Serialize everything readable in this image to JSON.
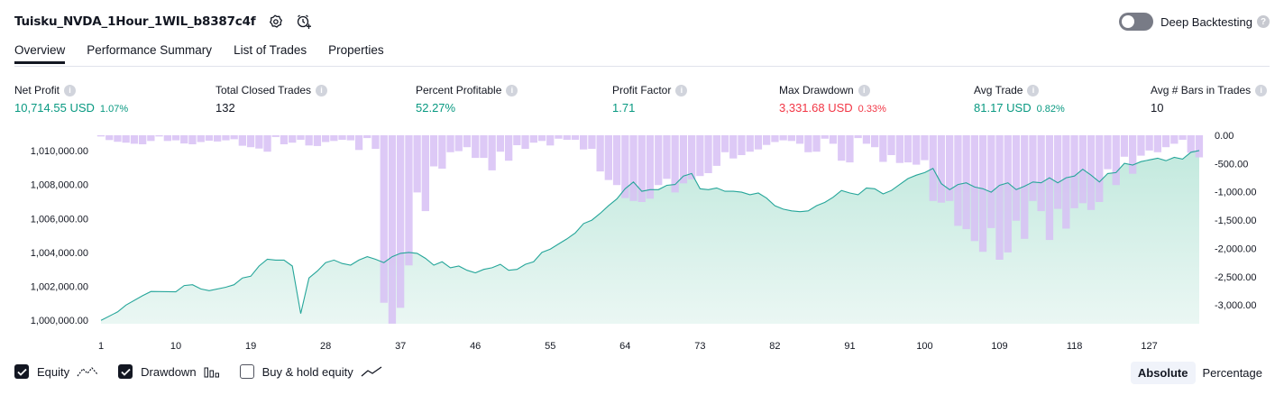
{
  "header": {
    "strategy_name": "Tuisku_NVDA_1Hour_1WIL_b8387c4f",
    "icons": [
      "settings-icon",
      "add-alert-icon"
    ],
    "deep_backtesting_label": "Deep Backtesting",
    "deep_backtesting_enabled": false
  },
  "tabs": [
    {
      "label": "Overview",
      "active": true
    },
    {
      "label": "Performance Summary",
      "active": false
    },
    {
      "label": "List of Trades",
      "active": false
    },
    {
      "label": "Properties",
      "active": false
    }
  ],
  "metrics": {
    "net_profit": {
      "label": "Net Profit",
      "value": "10,714.55 USD",
      "pct": "1.07%"
    },
    "total_closed_trades": {
      "label": "Total Closed Trades",
      "value": "132"
    },
    "percent_profitable": {
      "label": "Percent Profitable",
      "value": "52.27%"
    },
    "profit_factor": {
      "label": "Profit Factor",
      "value": "1.71"
    },
    "max_drawdown": {
      "label": "Max Drawdown",
      "value": "3,331.68 USD",
      "pct": "0.33%"
    },
    "avg_trade": {
      "label": "Avg Trade",
      "value": "81.17 USD",
      "pct": "0.82%"
    },
    "avg_bars": {
      "label": "Avg # Bars in Trades",
      "value": "10"
    }
  },
  "colors": {
    "green": "#089981",
    "red": "#f23645",
    "drawdown_bar": "#d7bff5",
    "equity_line": "#26a69a",
    "equity_fill": "#c8ece3"
  },
  "legend": {
    "equity": {
      "label": "Equity",
      "checked": true
    },
    "drawdown": {
      "label": "Drawdown",
      "checked": true
    },
    "buy_hold": {
      "label": "Buy & hold equity",
      "checked": false
    }
  },
  "view_modes": {
    "absolute": "Absolute",
    "percentage": "Percentage",
    "selected": "Absolute"
  },
  "chart_data": {
    "type": "area",
    "x_range": [
      1,
      133
    ],
    "x_ticks": [
      "1",
      "10",
      "19",
      "28",
      "37",
      "46",
      "55",
      "64",
      "73",
      "82",
      "91",
      "100",
      "109",
      "118",
      "127"
    ],
    "left_axis_ticks": [
      "1,000,000.00",
      "1,002,000.00",
      "1,004,000.00",
      "1,006,000.00",
      "1,008,000.00",
      "1,010,000.00"
    ],
    "left_axis_range": [
      999800,
      1010900
    ],
    "right_axis_ticks": [
      "0.00",
      "-500.00",
      "-1,000.00",
      "-1,500.00",
      "-2,000.00",
      "-2,500.00",
      "-3,000.00"
    ],
    "right_axis_range": [
      -3331.68,
      0
    ],
    "series": [
      {
        "name": "Equity",
        "type": "area",
        "points": [
          [
            1,
            1000000
          ],
          [
            3,
            1000500
          ],
          [
            4,
            1000900
          ],
          [
            6,
            1001450
          ],
          [
            7,
            1001700
          ],
          [
            10,
            1001680
          ],
          [
            11,
            1002050
          ],
          [
            12,
            1002100
          ],
          [
            13,
            1001850
          ],
          [
            14,
            1001750
          ],
          [
            16,
            1001950
          ],
          [
            17,
            1002100
          ],
          [
            18,
            1002500
          ],
          [
            19,
            1002600
          ],
          [
            20,
            1003200
          ],
          [
            21,
            1003600
          ],
          [
            22,
            1003550
          ],
          [
            23,
            1003550
          ],
          [
            24,
            1003200
          ],
          [
            25,
            1000400
          ],
          [
            26,
            1002500
          ],
          [
            27,
            1002900
          ],
          [
            28,
            1003400
          ],
          [
            29,
            1003550
          ],
          [
            30,
            1003350
          ],
          [
            31,
            1003250
          ],
          [
            32,
            1003550
          ],
          [
            33,
            1003750
          ],
          [
            34,
            1003600
          ],
          [
            35,
            1003400
          ],
          [
            36,
            1003750
          ],
          [
            37,
            1003950
          ],
          [
            38,
            1004000
          ],
          [
            39,
            1003950
          ],
          [
            40,
            1003650
          ],
          [
            41,
            1003250
          ],
          [
            42,
            1003450
          ],
          [
            43,
            1003100
          ],
          [
            44,
            1003200
          ],
          [
            45,
            1002950
          ],
          [
            46,
            1002800
          ],
          [
            47,
            1003000
          ],
          [
            48,
            1003100
          ],
          [
            49,
            1003300
          ],
          [
            50,
            1002950
          ],
          [
            51,
            1003000
          ],
          [
            52,
            1003300
          ],
          [
            53,
            1003450
          ],
          [
            54,
            1004000
          ],
          [
            55,
            1004200
          ],
          [
            56,
            1004500
          ],
          [
            57,
            1004800
          ],
          [
            58,
            1005150
          ],
          [
            59,
            1005700
          ],
          [
            60,
            1005900
          ],
          [
            61,
            1006300
          ],
          [
            62,
            1006750
          ],
          [
            63,
            1007150
          ],
          [
            64,
            1007750
          ],
          [
            65,
            1008150
          ],
          [
            66,
            1007600
          ],
          [
            67,
            1007700
          ],
          [
            68,
            1007700
          ],
          [
            69,
            1007950
          ],
          [
            70,
            1008000
          ],
          [
            71,
            1008500
          ],
          [
            72,
            1008650
          ],
          [
            73,
            1007750
          ],
          [
            74,
            1007700
          ],
          [
            75,
            1007800
          ],
          [
            76,
            1007600
          ],
          [
            77,
            1007600
          ],
          [
            78,
            1007550
          ],
          [
            79,
            1007400
          ],
          [
            80,
            1007500
          ],
          [
            81,
            1007200
          ],
          [
            82,
            1006750
          ],
          [
            83,
            1006550
          ],
          [
            84,
            1006450
          ],
          [
            85,
            1006400
          ],
          [
            86,
            1006450
          ],
          [
            87,
            1006750
          ],
          [
            88,
            1006950
          ],
          [
            89,
            1007250
          ],
          [
            90,
            1007650
          ],
          [
            91,
            1007500
          ],
          [
            92,
            1007400
          ],
          [
            93,
            1007800
          ],
          [
            94,
            1007750
          ],
          [
            95,
            1007450
          ],
          [
            96,
            1007650
          ],
          [
            97,
            1008000
          ],
          [
            98,
            1008350
          ],
          [
            99,
            1008550
          ],
          [
            100,
            1008700
          ],
          [
            101,
            1008950
          ],
          [
            102,
            1008050
          ],
          [
            103,
            1007700
          ],
          [
            104,
            1008000
          ],
          [
            105,
            1008100
          ],
          [
            106,
            1007850
          ],
          [
            107,
            1007750
          ],
          [
            108,
            1007550
          ],
          [
            109,
            1007950
          ],
          [
            110,
            1008100
          ],
          [
            111,
            1007700
          ],
          [
            112,
            1007900
          ],
          [
            113,
            1008150
          ],
          [
            114,
            1008100
          ],
          [
            115,
            1008400
          ],
          [
            116,
            1008100
          ],
          [
            117,
            1008400
          ],
          [
            118,
            1008500
          ],
          [
            119,
            1008900
          ],
          [
            120,
            1008550
          ],
          [
            121,
            1008150
          ],
          [
            122,
            1008650
          ],
          [
            123,
            1008700
          ],
          [
            124,
            1009250
          ],
          [
            125,
            1009150
          ],
          [
            126,
            1009350
          ],
          [
            127,
            1009450
          ],
          [
            128,
            1009550
          ],
          [
            129,
            1009400
          ],
          [
            130,
            1009600
          ],
          [
            131,
            1009500
          ],
          [
            132,
            1009900
          ],
          [
            133,
            1010000
          ]
        ]
      },
      {
        "name": "Drawdown",
        "type": "bar",
        "values": [
          -20,
          -85,
          -115,
          -130,
          -150,
          -160,
          -100,
          -20,
          -100,
          -90,
          -145,
          -160,
          -120,
          -95,
          -110,
          -90,
          -70,
          -185,
          -210,
          -235,
          -290,
          -30,
          -160,
          -130,
          -80,
          -180,
          -190,
          -120,
          -100,
          -80,
          -90,
          -260,
          -50,
          -240,
          -2960,
          -3330,
          -3050,
          -2300,
          -1010,
          -1340,
          -550,
          -590,
          -300,
          -280,
          -210,
          -400,
          -400,
          -620,
          -290,
          -450,
          -175,
          -240,
          -130,
          -100,
          -180,
          -60,
          -80,
          -80,
          -250,
          -240,
          -640,
          -790,
          -880,
          -1110,
          -1160,
          -1180,
          -1120,
          -880,
          -770,
          -1010,
          -850,
          -780,
          -720,
          -670,
          -540,
          -300,
          -410,
          -350,
          -290,
          -250,
          -170,
          -120,
          -90,
          -100,
          -150,
          -300,
          -290,
          -60,
          -150,
          -450,
          -480,
          -50,
          -150,
          -210,
          -470,
          -350,
          -490,
          -480,
          -520,
          -440,
          -1160,
          -1190,
          -1160,
          -1600,
          -1660,
          -1870,
          -2060,
          -1640,
          -2200,
          -2070,
          -1510,
          -1830,
          -1160,
          -1340,
          -1850,
          -1300,
          -1650,
          -1290,
          -1200,
          -1320,
          -1180,
          -600,
          -880,
          -380,
          -680,
          -360,
          -270,
          -300,
          -210,
          -150,
          -80,
          -310,
          -390
        ]
      }
    ]
  }
}
